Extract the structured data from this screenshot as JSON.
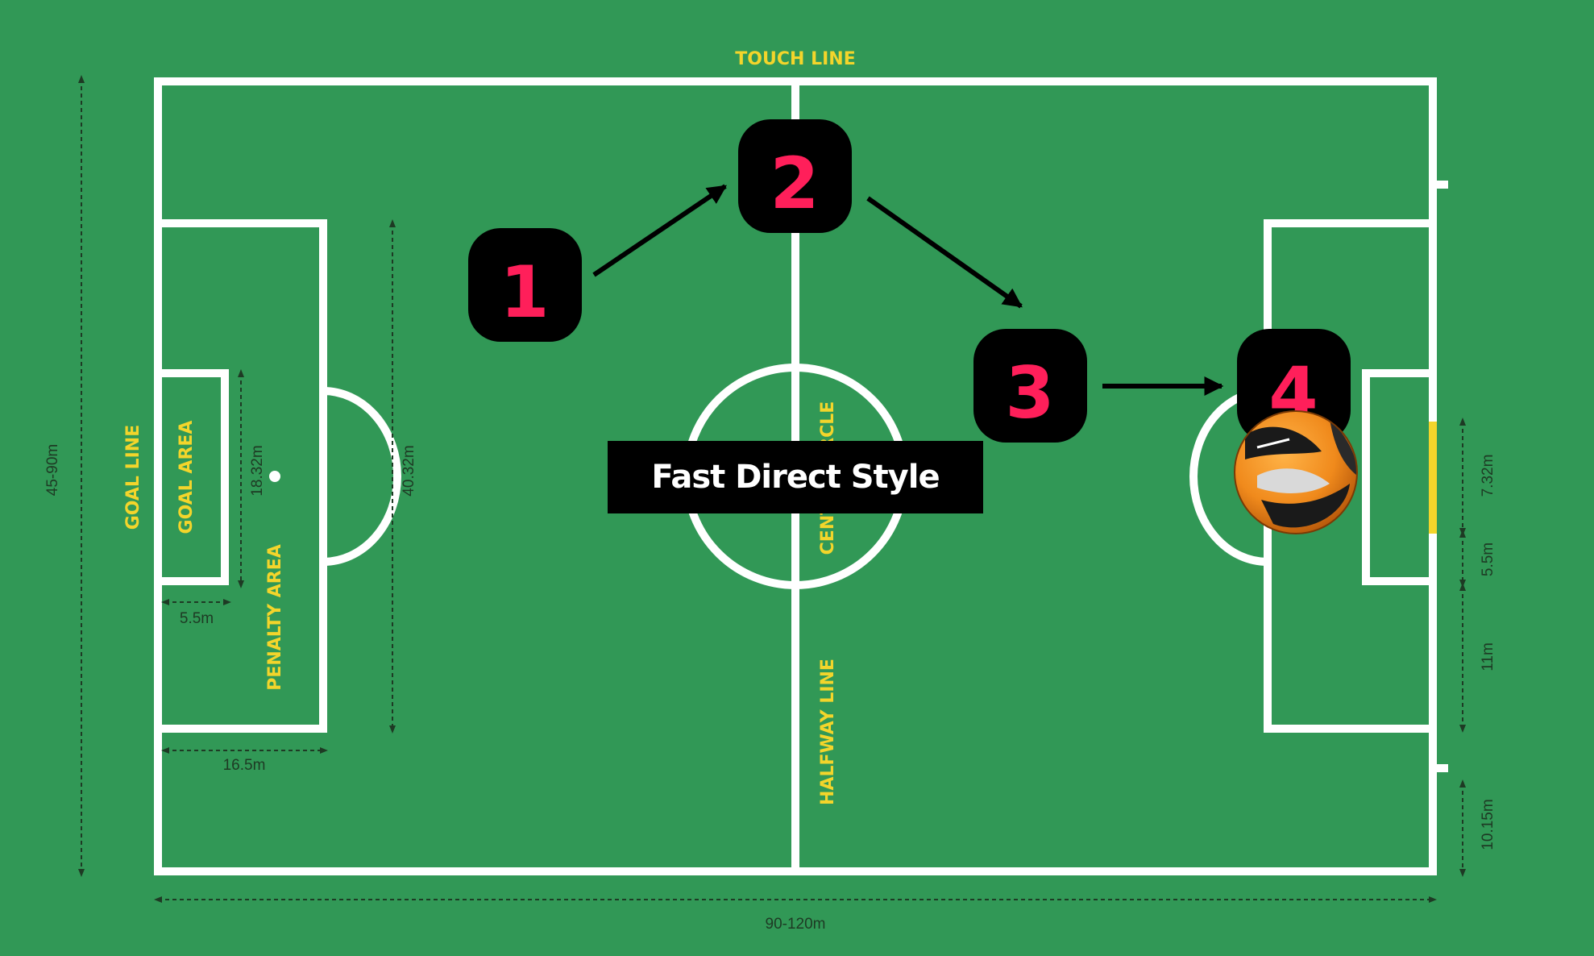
{
  "labels": {
    "touch_line": "TOUCH LINE",
    "goal_line": "GOAL LINE",
    "goal_area": "GOAL AREA",
    "penalty_area": "PENALTY AREA",
    "centre_circle": "CENTRE CIRCLE",
    "halfway_line": "HALFWAY LINE"
  },
  "dimensions": {
    "width": "45-90m",
    "length": "90-120m",
    "goal_area_width": "18.32m",
    "penalty_area_width": "40.32m",
    "goal_area_depth": "5.5m",
    "penalty_area_depth": "16.5m",
    "goal_width": "7.32m",
    "goal_area_depth_right": "5.5m",
    "penalty_spot": "11m",
    "corner_mark": "10.15m"
  },
  "steps": [
    "1",
    "2",
    "3",
    "4"
  ],
  "title": "Fast Direct Style",
  "colors": {
    "pitch": "#319856",
    "lines": "#ffffff",
    "labels": "#f3d52b",
    "step_box": "#000000",
    "step_number": "#ff1f5a",
    "goal": "#f3d52b"
  },
  "icons": {
    "ball": "soccer-ball-icon"
  }
}
